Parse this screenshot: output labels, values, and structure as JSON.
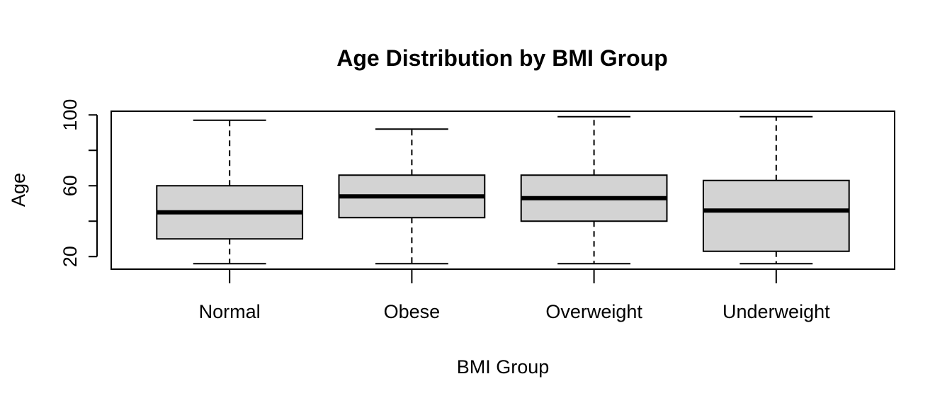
{
  "chart_data": {
    "type": "boxplot",
    "title": "Age Distribution by BMI Group",
    "xlabel": "BMI Group",
    "ylabel": "Age",
    "ylim": [
      12.9,
      102.1
    ],
    "yticks": [
      20,
      40,
      60,
      80,
      100
    ],
    "ytick_labels": [
      "20",
      "",
      "60",
      "",
      "100"
    ],
    "categories": [
      "Normal",
      "Obese",
      "Overweight",
      "Underweight"
    ],
    "boxes": [
      {
        "category": "Normal",
        "whisker_low": 16,
        "q1": 30,
        "median": 45,
        "q3": 60,
        "whisker_high": 97
      },
      {
        "category": "Obese",
        "whisker_low": 16,
        "q1": 42,
        "median": 54,
        "q3": 66,
        "whisker_high": 92
      },
      {
        "category": "Overweight",
        "whisker_low": 16,
        "q1": 40,
        "median": 53,
        "q3": 66,
        "whisker_high": 99
      },
      {
        "category": "Underweight",
        "whisker_low": 16,
        "q1": 23,
        "median": 46,
        "q3": 63,
        "whisker_high": 99
      }
    ],
    "box_fill": "#d3d3d3",
    "line_color": "#000000",
    "grid": false,
    "legend": "none"
  }
}
